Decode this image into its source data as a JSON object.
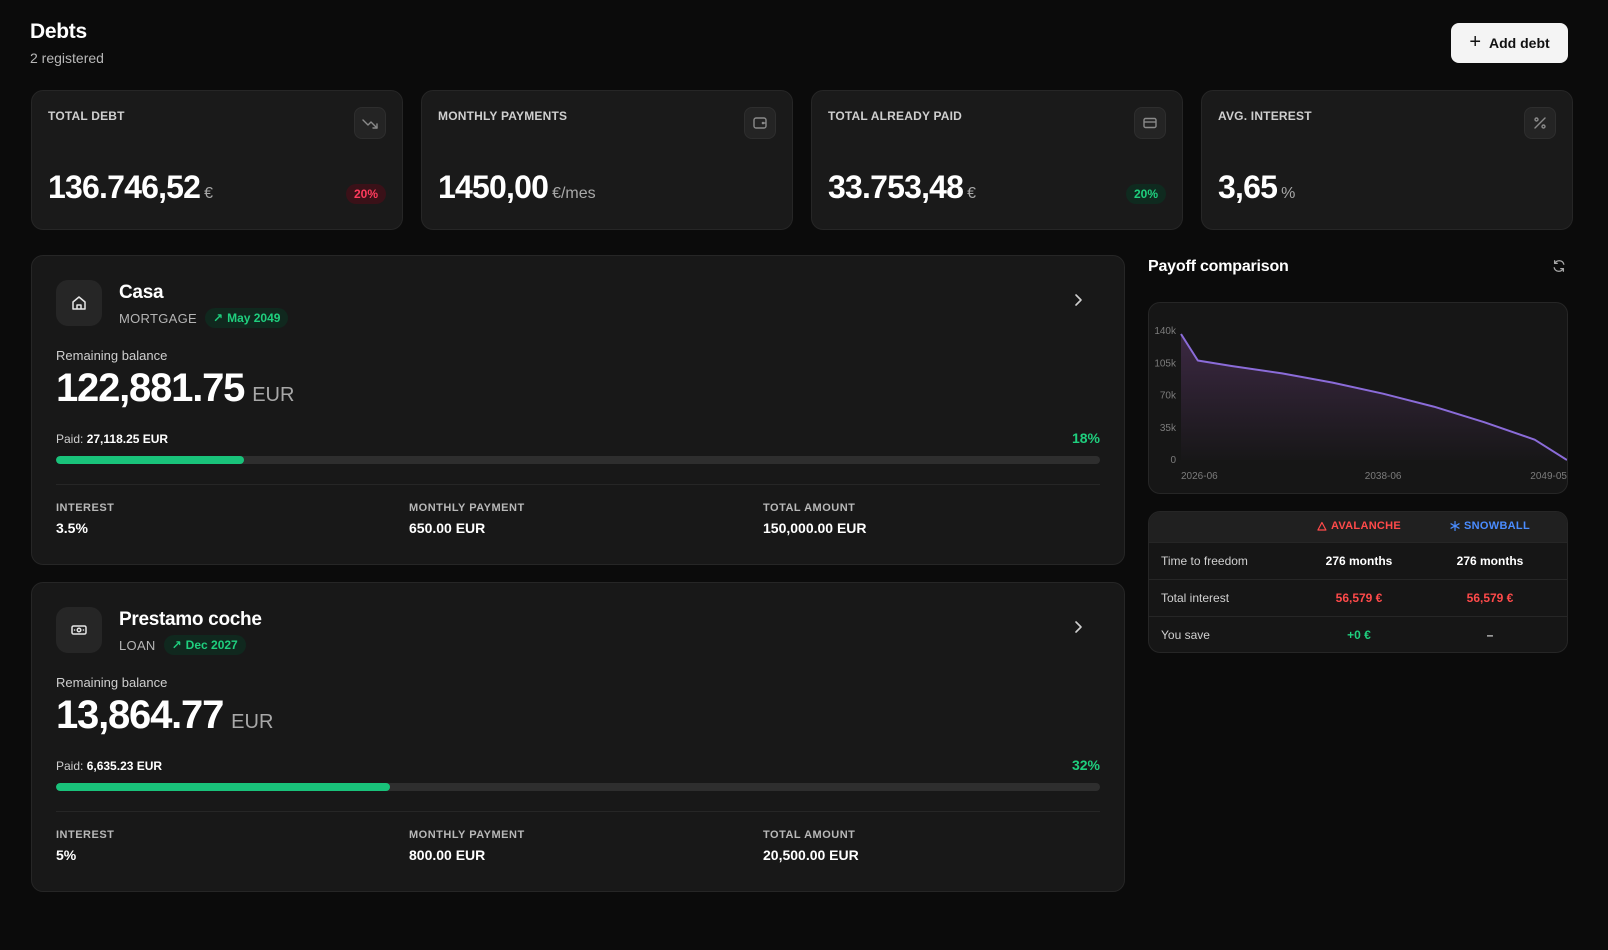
{
  "header": {
    "title": "Debts",
    "subtitle": "2 registered",
    "add_label": "Add debt"
  },
  "stats": [
    {
      "label": "TOTAL DEBT",
      "value": "136.746,52",
      "unit": "€",
      "badge": "20%",
      "icon": "trending-down-icon"
    },
    {
      "label": "MONTHLY PAYMENTS",
      "value": "1450,00",
      "unit": "€/mes",
      "icon": "wallet-icon"
    },
    {
      "label": "TOTAL ALREADY PAID",
      "value": "33.753,48",
      "unit": "€",
      "badge": "20%",
      "icon": "credit-card-icon"
    },
    {
      "label": "AVG. INTEREST",
      "value": "3,65",
      "unit": "%",
      "icon": "percent-icon"
    }
  ],
  "debts": [
    {
      "name": "Casa",
      "type": "MORTGAGE",
      "end_date": "May 2049",
      "icon": "home-icon",
      "remaining_label": "Remaining balance",
      "remaining": "122,881.75",
      "currency": "EUR",
      "paid_label": "Paid:",
      "paid": "27,118.25 EUR",
      "progress_text": "18%",
      "progress": 0.18,
      "details": [
        {
          "label": "INTEREST",
          "value": "3.5%"
        },
        {
          "label": "MONTHLY PAYMENT",
          "value": "650.00 EUR"
        },
        {
          "label": "TOTAL AMOUNT",
          "value": "150,000.00 EUR"
        }
      ]
    },
    {
      "name": "Prestamo coche",
      "type": "LOAN",
      "end_date": "Dec 2027",
      "icon": "banknote-icon",
      "remaining_label": "Remaining balance",
      "remaining": "13,864.77",
      "currency": "EUR",
      "paid_label": "Paid:",
      "paid": "6,635.23 EUR",
      "progress_text": "32%",
      "progress": 0.32,
      "details": [
        {
          "label": "INTEREST",
          "value": "5%"
        },
        {
          "label": "MONTHLY PAYMENT",
          "value": "800.00 EUR"
        },
        {
          "label": "TOTAL AMOUNT",
          "value": "20,500.00 EUR"
        }
      ]
    }
  ],
  "payoff": {
    "title": "Payoff comparison",
    "columns": {
      "avalanche": "AVALANCHE",
      "snowball": "SNOWBALL"
    },
    "rows": [
      {
        "label": "Time to freedom",
        "avalanche": "276 months",
        "snowball": "276 months"
      },
      {
        "label": "Total interest",
        "avalanche": "56,579 €",
        "snowball": "56,579 €"
      },
      {
        "label": "You save",
        "avalanche": "+0 €",
        "snowball": "–"
      }
    ],
    "colors": {
      "avalanche": "#ff4a4a",
      "snowball": "#4a8cff",
      "positive": "#1fcf7e",
      "line": "#8b6cd9"
    }
  },
  "chart_data": {
    "type": "area",
    "x": [
      "2026-06",
      "2027-06",
      "2029-06",
      "2032-06",
      "2035-06",
      "2038-06",
      "2041-06",
      "2044-06",
      "2047-06",
      "2049-05"
    ],
    "series": [
      {
        "values": [
          136746,
          108000,
          102000,
          94000,
          84000,
          72000,
          58000,
          41000,
          22000,
          0
        ]
      }
    ],
    "xticks": [
      "2026-06",
      "2038-06",
      "2049-05"
    ],
    "yticks": [
      "0",
      "35k",
      "70k",
      "105k",
      "140k"
    ],
    "ylim": [
      0,
      140000
    ]
  }
}
